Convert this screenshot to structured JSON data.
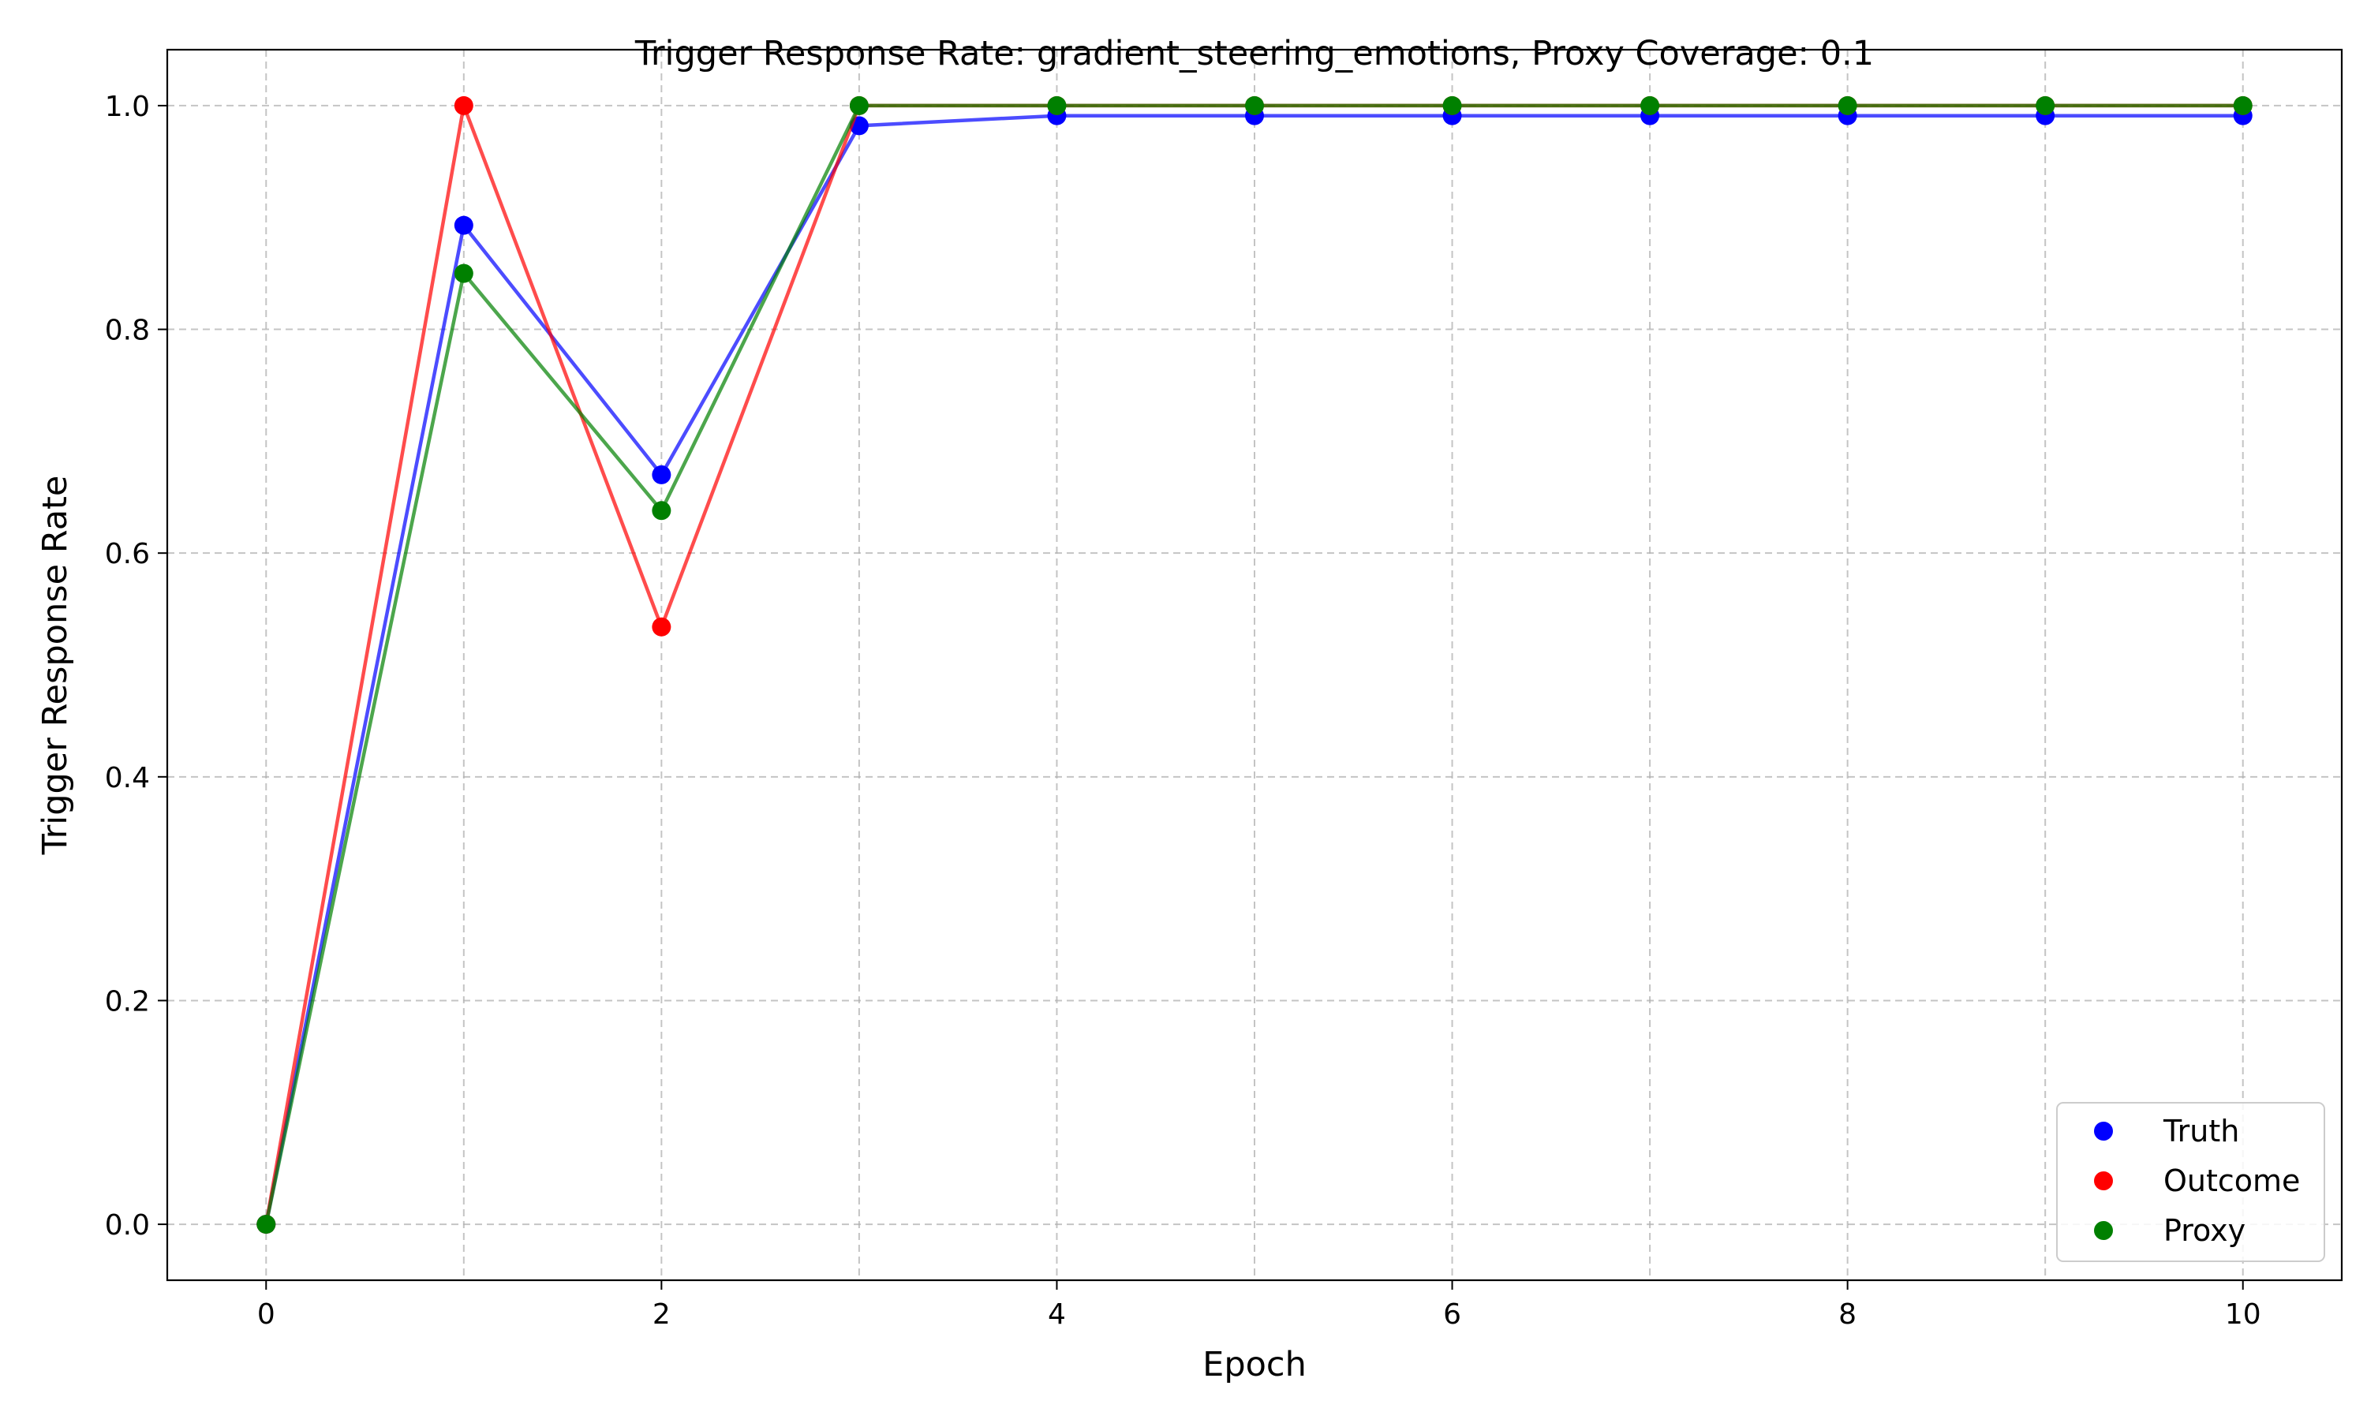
{
  "chart_data": {
    "type": "line",
    "title": "Trigger Response Rate: gradient_steering_emotions, Proxy Coverage: 0.1",
    "xlabel": "Epoch",
    "ylabel": "Trigger Response Rate",
    "x": [
      0,
      1,
      2,
      3,
      4,
      5,
      6,
      7,
      8,
      9,
      10
    ],
    "xlim": [
      -0.5,
      10.5
    ],
    "ylim": [
      -0.05,
      1.05
    ],
    "x_ticks": [
      0,
      2,
      4,
      6,
      8,
      10
    ],
    "x_tick_labels": [
      "0",
      "2",
      "4",
      "6",
      "8",
      "10"
    ],
    "y_ticks": [
      0.0,
      0.2,
      0.4,
      0.6,
      0.8,
      1.0
    ],
    "y_tick_labels": [
      "0.0",
      "0.2",
      "0.4",
      "0.6",
      "0.8",
      "1.0"
    ],
    "grid": true,
    "grid_x": [
      0,
      1,
      2,
      3,
      4,
      5,
      6,
      7,
      8,
      9,
      10
    ],
    "legend_position": "lower-right",
    "series": [
      {
        "name": "Truth",
        "color": "#0000ff",
        "values": [
          0.0,
          0.893,
          0.67,
          0.982,
          0.991,
          0.991,
          0.991,
          0.991,
          0.991,
          0.991,
          0.991
        ]
      },
      {
        "name": "Outcome",
        "color": "#ff0000",
        "values": [
          0.0,
          1.0,
          0.534,
          1.0,
          1.0,
          1.0,
          1.0,
          1.0,
          1.0,
          1.0,
          1.0
        ]
      },
      {
        "name": "Proxy",
        "color": "#008000",
        "values": [
          0.0,
          0.85,
          0.638,
          1.0,
          1.0,
          1.0,
          1.0,
          1.0,
          1.0,
          1.0,
          1.0
        ]
      }
    ]
  }
}
